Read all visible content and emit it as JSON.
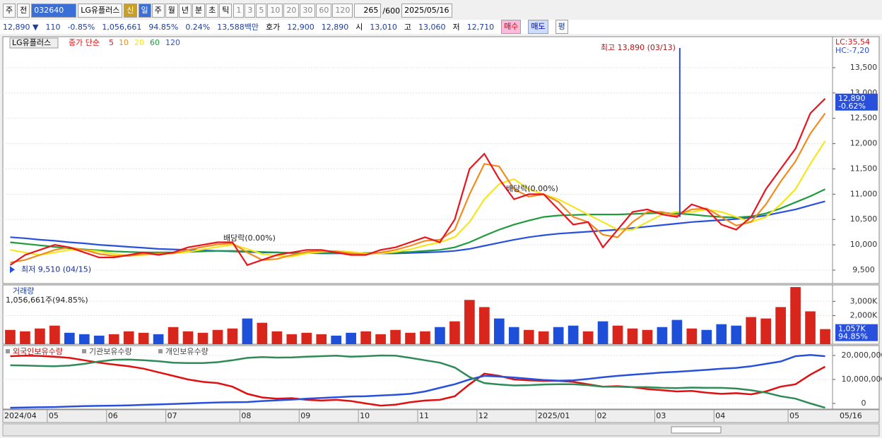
{
  "toolbar": {
    "left": [
      "주",
      "전"
    ],
    "code": "032640",
    "name": "LG유플러스",
    "new": "신",
    "periods": [
      "일",
      "주",
      "월",
      "년",
      "분",
      "초",
      "틱"
    ],
    "minutes": [
      "1",
      "3",
      "5",
      "10",
      "20",
      "30",
      "60",
      "120"
    ],
    "count": "265",
    "max": "/600",
    "date": "2025/05/16"
  },
  "info": {
    "price": "12,890 ▼",
    "change": "110",
    "rate": "-0.85%",
    "volume": "1,056,661",
    "vol_rate": "94.85%",
    "turnover": "0.24%",
    "amount": "13,588백만",
    "quote_label": "호가",
    "ask": "12,900",
    "bid": "12,890",
    "open_label": "시",
    "open": "13,010",
    "high_label": "고",
    "high": "13,060",
    "low_label": "저",
    "low": "12,710",
    "buy": "매수",
    "sell": "매도",
    "avg": "평"
  },
  "chart_data": [
    {
      "type": "line",
      "title": "LG유플러스",
      "subtitle": "종가 단순",
      "lc": "LC:35,54",
      "hc": "HC:-7,20",
      "ylim": [
        9235,
        14113
      ],
      "yticks": [
        {
          "value": 9500,
          "label": "9,500"
        },
        {
          "value": 10000,
          "label": "10,000"
        },
        {
          "value": 10500,
          "label": "10,500"
        },
        {
          "value": 11000,
          "label": "11,000"
        },
        {
          "value": 11500,
          "label": "11,500"
        },
        {
          "value": 12000,
          "label": "12,000"
        },
        {
          "value": 12500,
          "label": "12,500"
        },
        {
          "value": 13000,
          "label": "13,000"
        },
        {
          "value": 13500,
          "label": "13,500"
        }
      ],
      "last": {
        "value": 12890,
        "label": "12,890"
      },
      "last_change": "-0.62%",
      "high_note": {
        "value": 13890,
        "label": "최고 13,890 (03/13)"
      },
      "low_note": {
        "value": 9510,
        "label": "최저 9,510 (04/15)"
      },
      "annotations": [
        "배당락(0.00%)",
        "배당락(0.00%)"
      ],
      "series": [
        {
          "name": "5",
          "color": "#e8141e",
          "values": [
            9600,
            9800,
            9900,
            10000,
            9950,
            9850,
            9750,
            9750,
            9800,
            9850,
            9800,
            9850,
            9950,
            10000,
            10050,
            10050,
            9600,
            9700,
            9800,
            9850,
            9900,
            9900,
            9850,
            9800,
            9800,
            9900,
            9950,
            10050,
            10150,
            10050,
            10500,
            11500,
            11800,
            11300,
            10900,
            11000,
            11000,
            10700,
            10400,
            10450,
            9950,
            10300,
            10650,
            10700,
            10600,
            10550,
            10800,
            10700,
            10400,
            10300,
            10550,
            11100,
            11500,
            11900,
            12600,
            12890
          ]
        },
        {
          "name": "10",
          "color": "#f28c1e",
          "values": [
            9650,
            9700,
            9800,
            9900,
            9950,
            9900,
            9820,
            9780,
            9780,
            9820,
            9830,
            9830,
            9900,
            9960,
            10010,
            10030,
            9850,
            9700,
            9720,
            9800,
            9860,
            9880,
            9870,
            9830,
            9810,
            9850,
            9900,
            9980,
            10080,
            10100,
            10300,
            11000,
            11600,
            11550,
            11100,
            10950,
            11000,
            10850,
            10550,
            10450,
            10200,
            10150,
            10450,
            10650,
            10650,
            10580,
            10700,
            10720,
            10550,
            10380,
            10450,
            10800,
            11250,
            11650,
            12200,
            12600
          ]
        },
        {
          "name": "20",
          "color": "#f5e61e",
          "values": [
            9900,
            9850,
            9800,
            9850,
            9900,
            9900,
            9870,
            9820,
            9790,
            9800,
            9820,
            9830,
            9860,
            9910,
            9960,
            10000,
            9920,
            9820,
            9780,
            9770,
            9830,
            9860,
            9880,
            9860,
            9830,
            9830,
            9860,
            9910,
            9990,
            10050,
            10150,
            10450,
            10900,
            11200,
            11300,
            11100,
            11000,
            10900,
            10750,
            10600,
            10450,
            10300,
            10300,
            10450,
            10600,
            10650,
            10650,
            10700,
            10650,
            10550,
            10450,
            10550,
            10800,
            11100,
            11600,
            12050
          ]
        },
        {
          "name": "60",
          "color": "#1e9b3c",
          "values": [
            10050,
            10020,
            9990,
            9960,
            9930,
            9910,
            9890,
            9870,
            9860,
            9850,
            9850,
            9850,
            9860,
            9870,
            9880,
            9880,
            9870,
            9860,
            9850,
            9840,
            9840,
            9840,
            9840,
            9840,
            9840,
            9840,
            9850,
            9860,
            9880,
            9900,
            9950,
            10050,
            10180,
            10300,
            10400,
            10480,
            10550,
            10580,
            10590,
            10600,
            10600,
            10600,
            10610,
            10620,
            10630,
            10620,
            10600,
            10570,
            10550,
            10540,
            10560,
            10620,
            10720,
            10840,
            10960,
            11100
          ]
        },
        {
          "name": "120",
          "color": "#2850dc",
          "values": [
            10150,
            10130,
            10100,
            10080,
            10050,
            10030,
            10000,
            9980,
            9960,
            9940,
            9920,
            9910,
            9900,
            9890,
            9880,
            9870,
            9860,
            9850,
            9850,
            9840,
            9840,
            9830,
            9830,
            9830,
            9830,
            9830,
            9830,
            9840,
            9850,
            9860,
            9880,
            9920,
            9980,
            10040,
            10100,
            10150,
            10190,
            10220,
            10240,
            10260,
            10280,
            10300,
            10330,
            10360,
            10390,
            10420,
            10450,
            10470,
            10490,
            10510,
            10540,
            10580,
            10640,
            10700,
            10780,
            10860
          ]
        }
      ]
    },
    {
      "type": "bar",
      "title": "거래량",
      "subtitle": "1,056,661주(94.85%)",
      "up_color": "#d9261c",
      "down_color": "#1d4fd8",
      "ylim": [
        0,
        4150
      ],
      "yticks": [
        {
          "value": 2000,
          "label": "2,000K"
        },
        {
          "value": 3000,
          "label": "3,000K"
        }
      ],
      "last": {
        "value": 1057,
        "label": "1,057K"
      },
      "last_rate": "94.85%",
      "values": [
        1000,
        900,
        1100,
        1300,
        800,
        700,
        600,
        700,
        900,
        800,
        700,
        1200,
        900,
        800,
        1000,
        1100,
        1800,
        1500,
        900,
        700,
        800,
        700,
        600,
        800,
        900,
        700,
        1000,
        800,
        900,
        1200,
        1600,
        3100,
        2600,
        1800,
        1200,
        1000,
        900,
        1200,
        1300,
        900,
        1600,
        1300,
        1100,
        1000,
        1200,
        1700,
        1100,
        1000,
        1400,
        1300,
        1900,
        1800,
        2600,
        4000,
        2300,
        1057
      ]
    },
    {
      "type": "line",
      "ylim": [
        -2350000,
        24100000
      ],
      "yticks": [
        0,
        {
          "value": 10000000,
          "label": "10,000,000"
        },
        {
          "value": 20000000,
          "label": "20,000,000"
        }
      ],
      "categories": [
        "2024/04",
        null,
        null,
        "05",
        null,
        null,
        null,
        "06",
        null,
        null,
        null,
        "07",
        null,
        null,
        null,
        null,
        "08",
        null,
        null,
        null,
        "09",
        null,
        null,
        null,
        "10",
        null,
        null,
        null,
        "11",
        null,
        null,
        null,
        "12",
        null,
        null,
        null,
        "2025/01",
        null,
        null,
        null,
        "02",
        null,
        null,
        null,
        "03",
        null,
        null,
        null,
        "04",
        null,
        null,
        null,
        null,
        "05",
        null,
        null
      ],
      "end_label": "05/16",
      "series": [
        {
          "name": "외국인보유수량",
          "color": "#e01010",
          "values": [
            19700000,
            19900000,
            19800000,
            19500000,
            19000000,
            18000000,
            17000000,
            16200000,
            15500000,
            14500000,
            13000000,
            11500000,
            10000000,
            9000000,
            8500000,
            7000000,
            4000000,
            2500000,
            2000000,
            2200000,
            1500000,
            1200000,
            1500000,
            1000000,
            0,
            -900000,
            -500000,
            500000,
            1200000,
            1500000,
            3000000,
            8000000,
            12400000,
            11500000,
            10000000,
            9600000,
            9400000,
            9400000,
            9000000,
            8000000,
            7000000,
            7200000,
            6800000,
            6000000,
            5500000,
            5000000,
            5200000,
            4500000,
            4000000,
            4300000,
            3800000,
            5000000,
            7000000,
            8000000,
            12000000,
            15300000
          ]
        },
        {
          "name": "기관보유수량",
          "color": "#2850dc",
          "values": [
            -1800000,
            -1700000,
            -1600000,
            -1500000,
            -1300000,
            -1100000,
            -1000000,
            -900000,
            -800000,
            -600000,
            -400000,
            -200000,
            0,
            200000,
            400000,
            500000,
            600000,
            1000000,
            1300000,
            1600000,
            2000000,
            2300000,
            2600000,
            2900000,
            3000000,
            3300000,
            3600000,
            4000000,
            5000000,
            6500000,
            8000000,
            10000000,
            11500000,
            11200000,
            10800000,
            10300000,
            9800000,
            9500000,
            9600000,
            10200000,
            10900000,
            11500000,
            12000000,
            12400000,
            12900000,
            13200000,
            13600000,
            14000000,
            14500000,
            14800000,
            15500000,
            16500000,
            17500000,
            19700000,
            20200000,
            19700000
          ]
        },
        {
          "name": "개인보유수량",
          "color": "#2e8b57",
          "values": [
            15900000,
            15800000,
            15600000,
            15500000,
            15800000,
            16500000,
            17500000,
            18200000,
            18300000,
            18000000,
            17600000,
            17000000,
            16800000,
            16800000,
            17200000,
            18000000,
            19000000,
            19300000,
            19100000,
            19200000,
            19500000,
            19700000,
            19900000,
            19500000,
            19700000,
            20000000,
            19900000,
            19000000,
            18000000,
            17000000,
            15000000,
            11000000,
            8500000,
            7900000,
            7500000,
            7600000,
            7900000,
            8000000,
            8000000,
            7600000,
            7000000,
            7000000,
            6800000,
            6800000,
            6500000,
            6400000,
            6600000,
            6500000,
            6500000,
            6200000,
            5500000,
            4500000,
            3000000,
            2000000,
            0,
            -1800000
          ]
        }
      ]
    }
  ]
}
